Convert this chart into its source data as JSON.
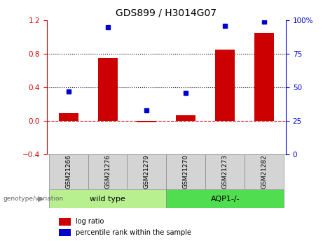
{
  "title": "GDS899 / H3014G07",
  "categories": [
    "GSM21266",
    "GSM21276",
    "GSM21279",
    "GSM21270",
    "GSM21273",
    "GSM21282"
  ],
  "log_ratio": [
    0.09,
    0.75,
    -0.02,
    0.07,
    0.85,
    1.05
  ],
  "percentile_rank": [
    47,
    95,
    33,
    46,
    96,
    99
  ],
  "bar_color": "#cc0000",
  "dot_color": "#0000cc",
  "ylim_left": [
    -0.4,
    1.2
  ],
  "ylim_right": [
    0,
    100
  ],
  "yticks_left": [
    -0.4,
    0.0,
    0.4,
    0.8,
    1.2
  ],
  "yticks_right": [
    0,
    25,
    50,
    75,
    100
  ],
  "yticklabels_right": [
    "0",
    "25",
    "50",
    "75",
    "100%"
  ],
  "hlines": [
    0.4,
    0.8
  ],
  "zero_line_y": 0.0,
  "group1_label": "wild type",
  "group2_label": "AQP1-/-",
  "group1_color": "#b8f090",
  "group2_color": "#50dd50",
  "genotype_label": "genotype/variation",
  "legend_items": [
    "log ratio",
    "percentile rank within the sample"
  ],
  "bar_width": 0.5
}
